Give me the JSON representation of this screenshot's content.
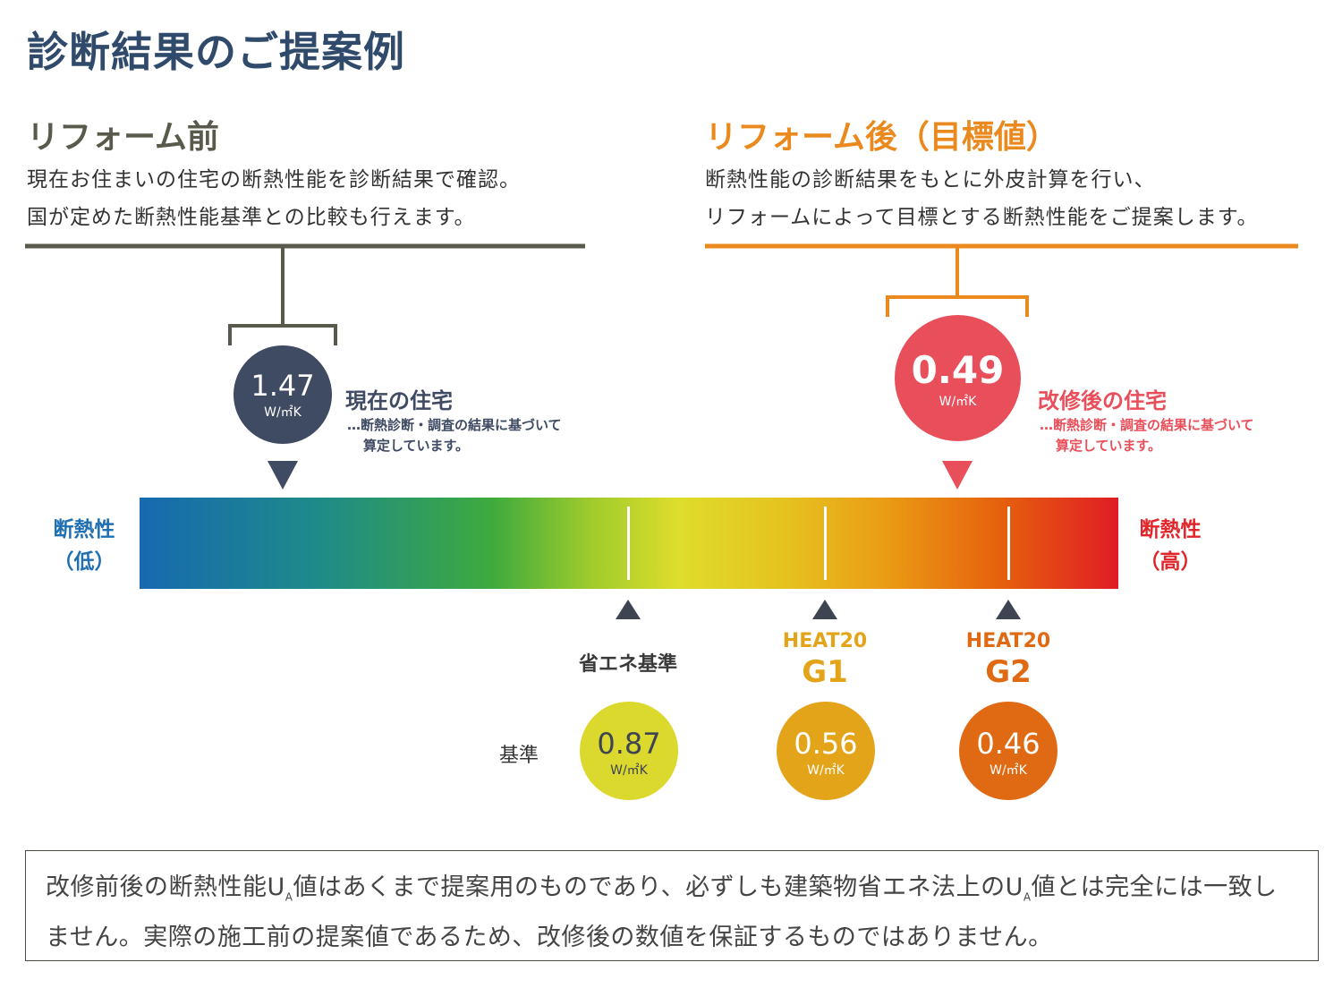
{
  "title": "診断結果のご提案例",
  "before": {
    "heading": "リフォーム前",
    "desc_line1": "現在お住まいの住宅の断熱性能を診断結果で確認。",
    "desc_line2": "国が定めた断熱性能基準との比較も行えます。",
    "value": "1.47",
    "unit": "W/㎡K",
    "label": "現在の住宅",
    "sub1": "…断熱診断・調査の結果に基づいて",
    "sub2": "算定しています。",
    "color": "#3f4a63"
  },
  "after": {
    "heading": "リフォーム後（目標値）",
    "desc_line1": "断熱性能の診断結果をもとに外皮計算を行い、",
    "desc_line2": "リフォームによって目標とする断熱性能をご提案します。",
    "value": "0.49",
    "unit": "W/㎡K",
    "label": "改修後の住宅",
    "sub1": "…断熱診断・調査の結果に基づいて",
    "sub2": "算定しています。",
    "color": "#e94f5a"
  },
  "scale": {
    "low_line1": "断熱性",
    "low_line2": "（低）",
    "high_line1": "断熱性",
    "high_line2": "（高）",
    "low_color": "#1f6fb3",
    "high_color": "#e0262b"
  },
  "benchmarks": {
    "row_label": "基準",
    "items": [
      {
        "name1": "",
        "name2": "省エネ基準",
        "value": "0.87",
        "unit": "W/㎡K",
        "color": "#dcd92e"
      },
      {
        "name1": "HEAT20",
        "name2": "G1",
        "value": "0.56",
        "unit": "W/㎡K",
        "color": "#e3a41a"
      },
      {
        "name1": "HEAT20",
        "name2": "G2",
        "value": "0.46",
        "unit": "W/㎡K",
        "color": "#e06a13"
      }
    ]
  },
  "note": {
    "p1": "改修前後の断熱性能U",
    "sub_a": "A",
    "p2": "値はあくまで提案用のものであり、必ずしも建築物省エネ法上のU",
    "p3": "値とは完全には一致しません。実際の施工前の提案値であるため、改修後の数値を保証するものではありません。"
  }
}
